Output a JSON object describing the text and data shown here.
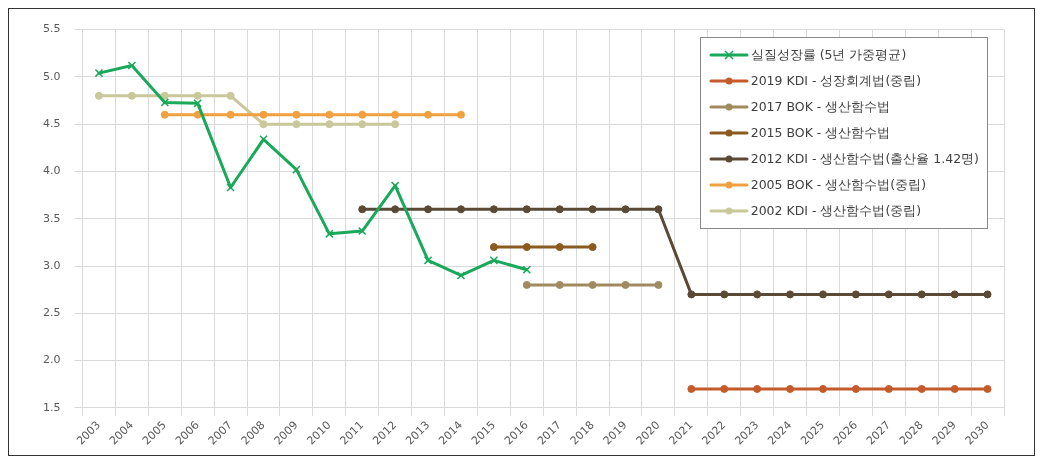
{
  "chart_data": {
    "type": "line",
    "categories": [
      "2003",
      "2004",
      "2005",
      "2006",
      "2007",
      "2008",
      "2009",
      "2010",
      "2011",
      "2012",
      "2013",
      "2014",
      "2015",
      "2016",
      "2017",
      "2018",
      "2019",
      "2020",
      "2021",
      "2022",
      "2023",
      "2024",
      "2025",
      "2026",
      "2027",
      "2028",
      "2029",
      "2030"
    ],
    "series": [
      {
        "name": "실질성장률 (5년 가중평균)",
        "color": "#1aa85a",
        "marker": "cross",
        "values": [
          5.04,
          5.12,
          4.73,
          4.72,
          3.83,
          4.34,
          4.02,
          3.34,
          3.37,
          3.85,
          3.06,
          2.9,
          3.06,
          2.96,
          null,
          null,
          null,
          null,
          null,
          null,
          null,
          null,
          null,
          null,
          null,
          null,
          null,
          null
        ]
      },
      {
        "name": "2019 KDI - 성장회계법(중립)",
        "color": "#c55a2a",
        "values": [
          null,
          null,
          null,
          null,
          null,
          null,
          null,
          null,
          null,
          null,
          null,
          null,
          null,
          null,
          null,
          null,
          null,
          null,
          1.7,
          1.7,
          1.7,
          1.7,
          1.7,
          1.7,
          1.7,
          1.7,
          1.7,
          1.7
        ]
      },
      {
        "name": "2017 BOK - 생산함수법",
        "color": "#a08a60",
        "values": [
          null,
          null,
          null,
          null,
          null,
          null,
          null,
          null,
          null,
          null,
          null,
          null,
          null,
          2.8,
          2.8,
          2.8,
          2.8,
          2.8,
          null,
          null,
          null,
          null,
          null,
          null,
          null,
          null,
          null,
          null
        ]
      },
      {
        "name": "2015 BOK - 생산함수법",
        "color": "#8b5a1e",
        "values": [
          null,
          null,
          null,
          null,
          null,
          null,
          null,
          null,
          null,
          null,
          null,
          null,
          3.2,
          3.2,
          3.2,
          3.2,
          null,
          null,
          null,
          null,
          null,
          null,
          null,
          null,
          null,
          null,
          null,
          null
        ]
      },
      {
        "name": "2012 KDI - 생산함수법(출산율 1.42명)",
        "color": "#5a4a35",
        "values": [
          null,
          null,
          null,
          null,
          null,
          null,
          null,
          null,
          3.6,
          3.6,
          3.6,
          3.6,
          3.6,
          3.6,
          3.6,
          3.6,
          3.6,
          3.6,
          2.7,
          2.7,
          2.7,
          2.7,
          2.7,
          2.7,
          2.7,
          2.7,
          2.7,
          2.7
        ]
      },
      {
        "name": "2005 BOK - 생산함수법(중립)",
        "color": "#f0a040",
        "values": [
          null,
          null,
          4.6,
          4.6,
          4.6,
          4.6,
          4.6,
          4.6,
          4.6,
          4.6,
          4.6,
          4.6,
          null,
          null,
          null,
          null,
          null,
          null,
          null,
          null,
          null,
          null,
          null,
          null,
          null,
          null,
          null,
          null
        ]
      },
      {
        "name": "2002 KDI - 생산함수법(중립)",
        "color": "#c8c89a",
        "values": [
          4.8,
          4.8,
          4.8,
          4.8,
          4.8,
          4.5,
          4.5,
          4.5,
          4.5,
          4.5,
          null,
          null,
          null,
          null,
          null,
          null,
          null,
          null,
          null,
          null,
          null,
          null,
          null,
          null,
          null,
          null,
          null,
          null
        ]
      }
    ],
    "ylim": [
      1.5,
      5.5
    ],
    "yticks": [
      {
        "value": 1.5,
        "label": "1.5"
      },
      {
        "value": 2,
        "label": "2.0"
      },
      {
        "value": 2.5,
        "label": "2.5"
      },
      {
        "value": 3,
        "label": "3.0"
      },
      {
        "value": 3.5,
        "label": "3.5"
      },
      {
        "value": 4,
        "label": "4.0"
      },
      {
        "value": 4.5,
        "label": "4.5"
      },
      {
        "value": 5,
        "label": "5.0"
      },
      {
        "value": 5.5,
        "label": "5.5"
      }
    ],
    "grid": true,
    "legend": "top right",
    "marker": "circle",
    "line_style": "solid"
  }
}
